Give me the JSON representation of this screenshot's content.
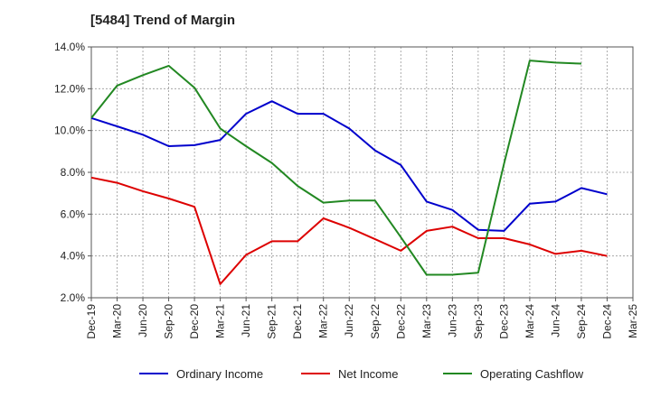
{
  "chart_data": {
    "type": "line",
    "title": "[5484]  Trend of Margin",
    "xlabel": "",
    "ylabel": "",
    "x": [
      "Dec-19",
      "Mar-20",
      "Jun-20",
      "Sep-20",
      "Dec-20",
      "Mar-21",
      "Jun-21",
      "Sep-21",
      "Dec-21",
      "Mar-22",
      "Jun-22",
      "Sep-22",
      "Dec-22",
      "Mar-23",
      "Jun-23",
      "Sep-23",
      "Dec-23",
      "Mar-24",
      "Jun-24",
      "Sep-24",
      "Dec-24",
      "Mar-25"
    ],
    "ylim": [
      2.0,
      14.0
    ],
    "yticks": [
      2.0,
      4.0,
      6.0,
      8.0,
      10.0,
      12.0,
      14.0
    ],
    "ytick_labels": [
      "2.0%",
      "4.0%",
      "6.0%",
      "8.0%",
      "10.0%",
      "12.0%",
      "14.0%"
    ],
    "grid": true,
    "legend_position": "bottom",
    "series": [
      {
        "name": "Ordinary Income",
        "color": "#0000cc",
        "values": [
          10.6,
          10.2,
          9.8,
          9.25,
          9.3,
          9.55,
          10.8,
          11.4,
          10.8,
          10.8,
          10.1,
          9.05,
          8.35,
          6.6,
          6.2,
          5.25,
          5.2,
          6.5,
          6.6,
          7.25,
          6.95,
          null
        ]
      },
      {
        "name": "Net Income",
        "color": "#dd0000",
        "values": [
          7.75,
          7.5,
          7.1,
          6.75,
          6.35,
          2.65,
          4.05,
          4.7,
          4.7,
          5.8,
          5.35,
          4.8,
          4.25,
          5.2,
          5.4,
          4.85,
          4.85,
          4.55,
          4.1,
          4.25,
          4.0,
          null
        ]
      },
      {
        "name": "Operating Cashflow",
        "color": "#228822",
        "values": [
          10.6,
          12.15,
          12.65,
          13.1,
          12.05,
          10.1,
          9.25,
          8.45,
          7.35,
          6.55,
          6.65,
          6.65,
          4.9,
          3.1,
          3.1,
          3.2,
          8.4,
          13.35,
          13.25,
          13.2,
          null,
          null
        ]
      }
    ]
  }
}
